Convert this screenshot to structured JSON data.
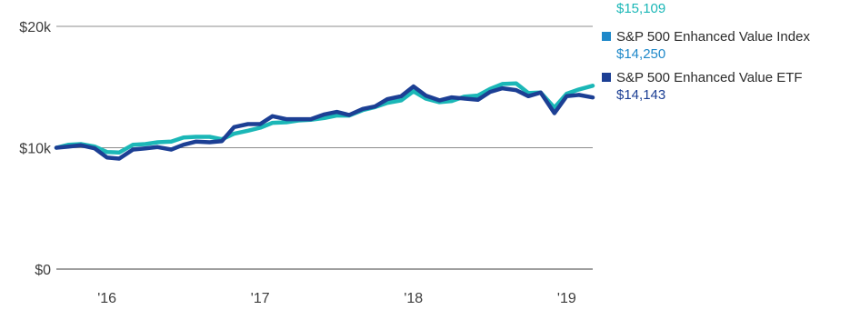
{
  "chart_data": {
    "type": "line",
    "y_ticks": [
      {
        "label": "$20k",
        "value": 20000
      },
      {
        "label": "$10k",
        "value": 10000
      },
      {
        "label": "$0",
        "value": 0
      }
    ],
    "x_ticks": [
      {
        "label": "'16",
        "value": 2016
      },
      {
        "label": "'17",
        "value": 2017
      },
      {
        "label": "'18",
        "value": 2018
      },
      {
        "label": "'19",
        "value": 2019
      }
    ],
    "xlim": [
      2015.67,
      2019.17
    ],
    "ylim": [
      0,
      20000
    ],
    "x": [
      2015.67,
      2015.75,
      2015.83,
      2015.92,
      2016.0,
      2016.08,
      2016.17,
      2016.25,
      2016.33,
      2016.42,
      2016.5,
      2016.58,
      2016.67,
      2016.75,
      2016.83,
      2016.92,
      2017.0,
      2017.08,
      2017.17,
      2017.25,
      2017.33,
      2017.42,
      2017.5,
      2017.58,
      2017.67,
      2017.75,
      2017.83,
      2017.92,
      2018.0,
      2018.08,
      2018.17,
      2018.25,
      2018.33,
      2018.42,
      2018.5,
      2018.58,
      2018.67,
      2018.75,
      2018.83,
      2018.92,
      2019.0,
      2019.08,
      2019.17
    ],
    "series": [
      {
        "color": "#1bb7b7",
        "values": [
          10000,
          10250,
          10300,
          10100,
          9650,
          9600,
          10250,
          10300,
          10450,
          10500,
          10850,
          10900,
          10900,
          10700,
          11150,
          11400,
          11650,
          12050,
          12100,
          12250,
          12300,
          12450,
          12650,
          12650,
          13100,
          13350,
          13700,
          13900,
          14650,
          14050,
          13750,
          13850,
          14200,
          14300,
          14850,
          15250,
          15300,
          14500,
          14550,
          13300,
          14450,
          14800,
          15109
        ]
      },
      {
        "color": "#1c3f94",
        "values": [
          10000,
          10100,
          10200,
          9950,
          9200,
          9100,
          9850,
          9950,
          10050,
          9850,
          10250,
          10500,
          10450,
          10550,
          11700,
          11950,
          11950,
          12600,
          12350,
          12350,
          12350,
          12750,
          12950,
          12700,
          13200,
          13400,
          14000,
          14250,
          15050,
          14300,
          13900,
          14150,
          14050,
          13950,
          14600,
          14900,
          14750,
          14250,
          14550,
          12850,
          14250,
          14350,
          14143
        ]
      }
    ]
  },
  "legend": {
    "top_value": "$15,109",
    "items": [
      {
        "label": "S&P 500 Enhanced Value Index",
        "value": "$14,250",
        "color": "#1e88c9",
        "value_color": "#1e88c9"
      },
      {
        "label": "S&P 500 Enhanced Value ETF",
        "value": "$14,143",
        "color": "#1c3f94",
        "value_color": "#1c3f94"
      }
    ],
    "top_value_color": "#1bb7b7"
  }
}
